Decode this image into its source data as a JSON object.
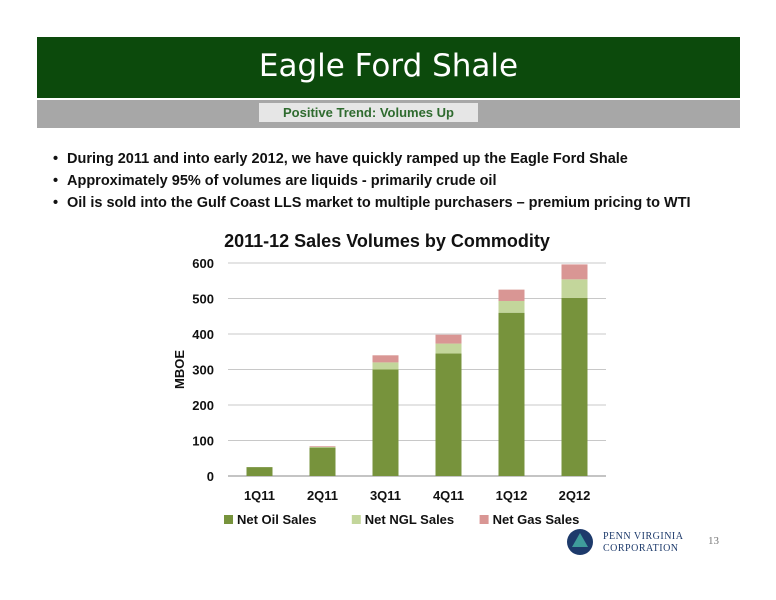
{
  "header": {
    "title": "Eagle Ford Shale",
    "subtitle": "Positive Trend: Volumes Up"
  },
  "bullets": [
    "During 2011 and into early 2012, we have quickly ramped up the Eagle Ford Shale",
    "Approximately 95% of volumes are liquids -  primarily crude oil",
    "Oil is sold into the Gulf Coast LLS market to multiple purchasers – premium pricing to WTI"
  ],
  "chart_data": {
    "type": "bar",
    "stacked": true,
    "title": "2011-12 Sales Volumes by Commodity",
    "xlabel": "",
    "ylabel": "MBOE",
    "ylim": [
      0,
      600
    ],
    "yticks": [
      0,
      100,
      200,
      300,
      400,
      500,
      600
    ],
    "grid": true,
    "legend": "bottom",
    "categories": [
      "1Q11",
      "2Q11",
      "3Q11",
      "4Q11",
      "1Q12",
      "2Q12"
    ],
    "series": [
      {
        "name": "Net Oil Sales",
        "color": "#77933c",
        "values": [
          25,
          80,
          300,
          345,
          460,
          502
        ]
      },
      {
        "name": "Net NGL Sales",
        "color": "#c3d69b",
        "values": [
          0,
          2,
          20,
          28,
          33,
          52
        ]
      },
      {
        "name": "Net Gas Sales",
        "color": "#d99694",
        "values": [
          0,
          2,
          20,
          25,
          32,
          42
        ]
      }
    ]
  },
  "footer": {
    "logo_line1": "PENN VIRGINIA",
    "logo_line2": "CORPORATION",
    "page_number": "13"
  }
}
